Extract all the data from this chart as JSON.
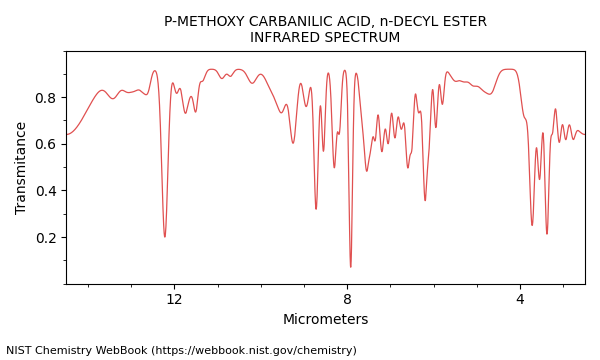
{
  "title_line1": "P-METHOXY CARBANILIC ACID, n-DECYL ESTER",
  "title_line2": "INFRARED SPECTRUM",
  "xlabel": "Micrometers",
  "ylabel": "Transmitance",
  "footnote": "NIST Chemistry WebBook (https://webbook.nist.gov/chemistry)",
  "xlim": [
    14.5,
    2.5
  ],
  "ylim": [
    0,
    1.0
  ],
  "xticks": [
    12,
    8,
    4
  ],
  "yticks": [
    0.2,
    0.4,
    0.6,
    0.8
  ],
  "line_color": "#e05050",
  "bg_color": "#ffffff",
  "title_fontsize": 10,
  "label_fontsize": 10,
  "footnote_fontsize": 8,
  "figsize": [
    6.0,
    3.6
  ],
  "dpi": 100
}
